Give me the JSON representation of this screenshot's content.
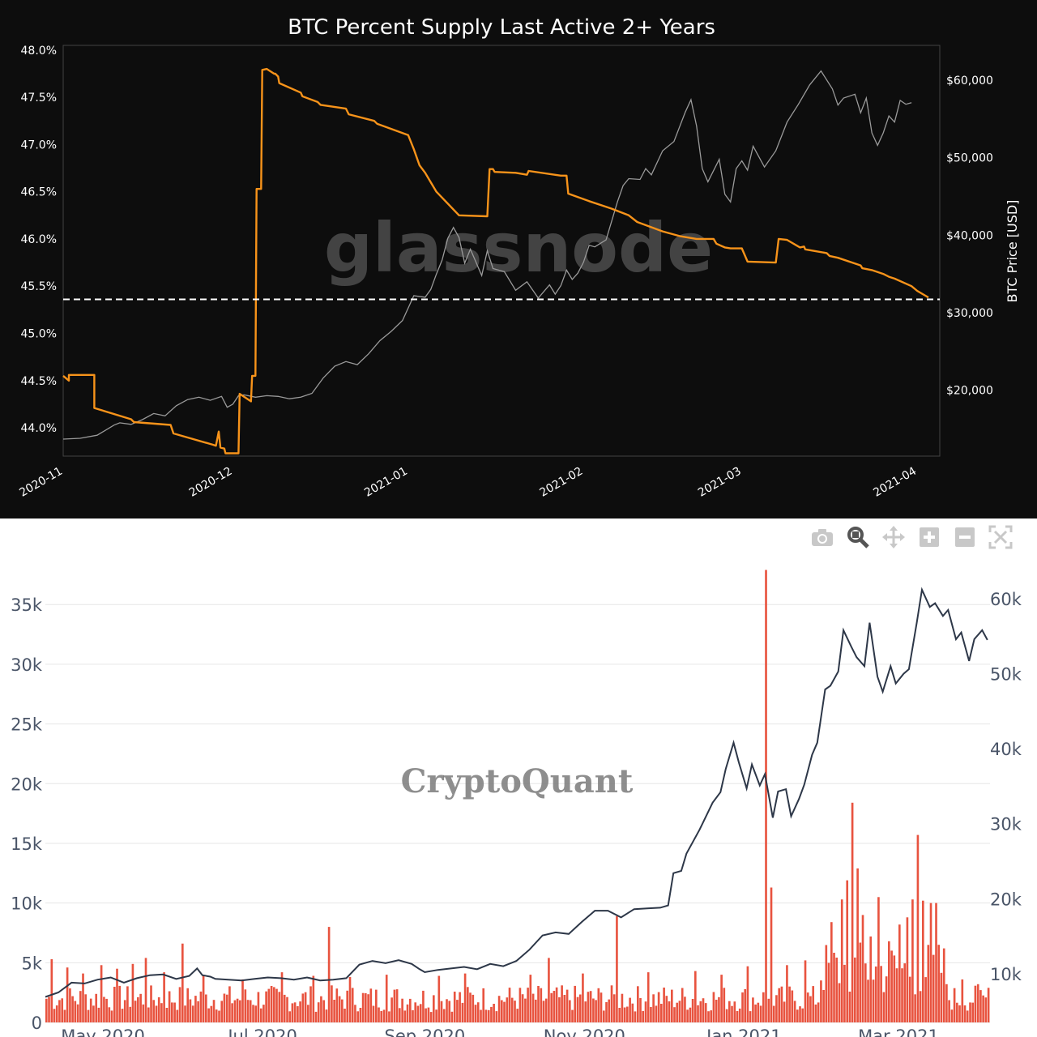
{
  "chart_data": [
    {
      "type": "line",
      "title": "BTC Percent Supply Last Active 2+ Years",
      "watermark": "glassnode",
      "y_left": {
        "range": [
          43.7,
          48.05
        ],
        "ticks": [
          "44.0%",
          "44.5%",
          "45.0%",
          "45.5%",
          "46.0%",
          "46.5%",
          "47.0%",
          "47.5%",
          "48.0%"
        ],
        "tick_values": [
          44.0,
          44.5,
          45.0,
          45.5,
          46.0,
          46.5,
          47.0,
          47.5,
          48.0
        ]
      },
      "y_right": {
        "label": "BTC Price [USD]",
        "range": [
          11500,
          64500
        ],
        "ticks": [
          "$20,000",
          "$30,000",
          "$40,000",
          "$50,000",
          "$60,000"
        ],
        "tick_values": [
          20000,
          30000,
          40000,
          50000,
          60000
        ]
      },
      "x_ticks": [
        "2020-11",
        "2020-12",
        "2021-01",
        "2021-02",
        "2021-03",
        "2021-04"
      ],
      "x_tick_days": [
        0,
        30,
        61,
        92,
        120,
        151
      ],
      "x_range_days": [
        0,
        155
      ],
      "reference_line": {
        "value": 45.36,
        "style": "dashed",
        "color": "#ffffff"
      },
      "series": [
        {
          "axis": "left",
          "color": "#f7931a",
          "x": [
            0,
            1,
            1,
            5.5,
            5.5,
            12,
            12.5,
            19,
            19.5,
            26.5,
            27,
            27.5,
            27.8,
            28.5,
            28.7,
            31,
            31.2,
            33.2,
            33.4,
            34,
            34.2,
            35,
            35.2,
            36,
            37.3,
            37.5,
            38,
            38.2,
            42,
            42.3,
            45,
            45.5,
            50,
            50.5,
            55,
            55.5,
            61,
            62,
            63,
            64,
            65,
            66,
            70,
            75,
            75.4,
            76,
            76.3,
            80,
            82,
            82.3,
            88,
            89,
            89.3,
            93,
            97,
            100,
            101.5,
            106,
            109,
            112,
            115,
            115.5,
            117,
            118,
            119,
            120,
            121,
            126,
            126.5,
            128,
            130,
            130.3,
            131,
            131.2,
            135,
            135.5,
            137,
            141,
            141.3,
            143,
            145,
            146,
            147,
            150,
            151,
            153
          ],
          "values": [
            44.55,
            44.5,
            44.56,
            44.56,
            44.21,
            44.09,
            44.06,
            44.03,
            43.94,
            43.82,
            43.81,
            43.96,
            43.79,
            43.78,
            43.73,
            43.73,
            44.36,
            44.28,
            44.55,
            44.55,
            46.53,
            46.53,
            47.79,
            47.8,
            47.75,
            47.75,
            47.72,
            47.65,
            47.55,
            47.51,
            47.45,
            47.42,
            47.38,
            47.32,
            47.25,
            47.22,
            47.1,
            46.95,
            46.78,
            46.7,
            46.6,
            46.5,
            46.25,
            46.24,
            46.74,
            46.74,
            46.71,
            46.7,
            46.68,
            46.72,
            46.67,
            46.67,
            46.48,
            46.4,
            46.32,
            46.25,
            46.18,
            46.08,
            46.03,
            46.0,
            46.0,
            45.95,
            45.91,
            45.9,
            45.9,
            45.9,
            45.76,
            45.75,
            46.0,
            45.99,
            45.92,
            45.91,
            45.92,
            45.89,
            45.85,
            45.82,
            45.8,
            45.72,
            45.69,
            45.67,
            45.63,
            45.6,
            45.58,
            45.5,
            45.45,
            45.38
          ]
        },
        {
          "axis": "right",
          "color": "#9a9a9a",
          "x": [
            0,
            3,
            6,
            9,
            10,
            12,
            14,
            16,
            18,
            20,
            22,
            24,
            26,
            28,
            29,
            30,
            31,
            32,
            34,
            36,
            38,
            40,
            42,
            44,
            46,
            48,
            50,
            52,
            54,
            56,
            58,
            60,
            62,
            64,
            65,
            66,
            67,
            68,
            69,
            70,
            71,
            72,
            73,
            74,
            75,
            76,
            78,
            80,
            82,
            84,
            86,
            87,
            88,
            89,
            90,
            91,
            92,
            93,
            94,
            96,
            98,
            99,
            100,
            102,
            103,
            104,
            106,
            108,
            110,
            111,
            112,
            113,
            114,
            116,
            117,
            118,
            119,
            120,
            121,
            122,
            124,
            126,
            128,
            130,
            132,
            134,
            136,
            137,
            138,
            140,
            141,
            142,
            143,
            144,
            145,
            146,
            147,
            148,
            149,
            150
          ],
          "values": [
            13700,
            13800,
            14200,
            15500,
            15800,
            15600,
            16200,
            17000,
            16700,
            18000,
            18800,
            19100,
            18700,
            19200,
            17800,
            18200,
            19300,
            19400,
            19100,
            19300,
            19200,
            18900,
            19100,
            19600,
            21600,
            23100,
            23700,
            23300,
            24700,
            26400,
            27600,
            29000,
            32200,
            32000,
            33000,
            35000,
            36800,
            39600,
            41000,
            39700,
            36400,
            38200,
            36500,
            34800,
            38000,
            35700,
            35300,
            32900,
            34000,
            31900,
            33600,
            32400,
            33500,
            35500,
            34300,
            35100,
            36500,
            38700,
            38500,
            39400,
            44300,
            46400,
            47300,
            47200,
            48600,
            47800,
            50900,
            52100,
            55900,
            57500,
            54100,
            48600,
            46900,
            49800,
            45300,
            44300,
            48600,
            49600,
            48400,
            51500,
            48800,
            50900,
            54600,
            56900,
            59400,
            61200,
            58900,
            56800,
            57700,
            58200,
            55800,
            57700,
            53200,
            51600,
            53200,
            55400,
            54600,
            57400,
            56900,
            57100
          ]
        }
      ]
    },
    {
      "type": "bar",
      "watermark": "CryptoQuant",
      "y_left": {
        "range": [
          0,
          38000
        ],
        "ticks": [
          "0",
          "5k",
          "10k",
          "15k",
          "20k",
          "25k",
          "30k",
          "35k"
        ],
        "tick_values": [
          0,
          5000,
          10000,
          15000,
          20000,
          25000,
          30000,
          35000
        ]
      },
      "y_right": {
        "range": [
          3500,
          64000
        ],
        "ticks": [
          "10k",
          "20k",
          "30k",
          "40k",
          "50k",
          "60k"
        ],
        "tick_values": [
          10000,
          20000,
          30000,
          40000,
          50000,
          60000
        ]
      },
      "x_ticks": [
        "May 2020",
        "Jul 2020",
        "Sep 2020",
        "Nov 2020",
        "Jan 2021",
        "Mar 2021"
      ],
      "x_tick_days": [
        22,
        83,
        145,
        206,
        267,
        326
      ],
      "x_range_days": [
        0,
        361
      ],
      "bars": {
        "color": "#e8533f",
        "base_level": 2500,
        "spikes": [
          {
            "day": 2,
            "value": 5300
          },
          {
            "day": 8,
            "value": 4600
          },
          {
            "day": 14,
            "value": 4100
          },
          {
            "day": 21,
            "value": 4800
          },
          {
            "day": 27,
            "value": 4500
          },
          {
            "day": 33,
            "value": 4900
          },
          {
            "day": 38,
            "value": 5400
          },
          {
            "day": 45,
            "value": 4200
          },
          {
            "day": 52,
            "value": 6600
          },
          {
            "day": 60,
            "value": 3900
          },
          {
            "day": 75,
            "value": 3600
          },
          {
            "day": 90,
            "value": 4200
          },
          {
            "day": 102,
            "value": 3900
          },
          {
            "day": 108,
            "value": 8000
          },
          {
            "day": 116,
            "value": 3800
          },
          {
            "day": 130,
            "value": 4000
          },
          {
            "day": 150,
            "value": 3900
          },
          {
            "day": 160,
            "value": 4100
          },
          {
            "day": 185,
            "value": 4000
          },
          {
            "day": 192,
            "value": 5400
          },
          {
            "day": 205,
            "value": 4100
          },
          {
            "day": 218,
            "value": 8900
          },
          {
            "day": 230,
            "value": 4200
          },
          {
            "day": 248,
            "value": 4300
          },
          {
            "day": 258,
            "value": 4000
          },
          {
            "day": 268,
            "value": 4700
          },
          {
            "day": 275,
            "value": 37900
          },
          {
            "day": 277,
            "value": 11300
          },
          {
            "day": 283,
            "value": 4800
          },
          {
            "day": 290,
            "value": 5200
          },
          {
            "day": 300,
            "value": 8400
          },
          {
            "day": 304,
            "value": 10300
          },
          {
            "day": 306,
            "value": 11900
          },
          {
            "day": 308,
            "value": 18400
          },
          {
            "day": 310,
            "value": 12900
          },
          {
            "day": 312,
            "value": 9000
          },
          {
            "day": 315,
            "value": 7200
          },
          {
            "day": 318,
            "value": 10500
          },
          {
            "day": 322,
            "value": 6800
          },
          {
            "day": 326,
            "value": 8200
          },
          {
            "day": 329,
            "value": 8800
          },
          {
            "day": 331,
            "value": 10300
          },
          {
            "day": 333,
            "value": 15700
          },
          {
            "day": 335,
            "value": 10200
          },
          {
            "day": 338,
            "value": 10000
          },
          {
            "day": 340,
            "value": 10000
          },
          {
            "day": 344,
            "value": 3200
          },
          {
            "day": 350,
            "value": 3600
          },
          {
            "day": 356,
            "value": 3200
          },
          {
            "day": 360,
            "value": 2900
          }
        ]
      },
      "series": [
        {
          "axis": "right",
          "color": "#2d3748",
          "x": [
            0,
            5,
            10,
            15,
            20,
            25,
            30,
            35,
            40,
            45,
            50,
            55,
            58,
            60,
            63,
            65,
            70,
            75,
            80,
            85,
            90,
            95,
            100,
            105,
            110,
            115,
            120,
            125,
            130,
            135,
            140,
            143,
            145,
            150,
            155,
            160,
            165,
            170,
            175,
            180,
            185,
            190,
            195,
            200,
            205,
            210,
            215,
            220,
            225,
            230,
            235,
            238,
            240,
            243,
            245,
            250,
            255,
            258,
            260,
            263,
            265,
            268,
            270,
            273,
            275,
            278,
            280,
            283,
            285,
            288,
            290,
            293,
            295,
            298,
            300,
            303,
            305,
            308,
            310,
            313,
            315,
            318,
            320,
            323,
            325,
            328,
            330,
            333,
            335,
            338,
            340,
            343,
            345,
            348,
            350,
            353,
            355,
            358,
            360
          ],
          "values": [
            6900,
            7500,
            8800,
            8700,
            9200,
            9500,
            8800,
            9400,
            9800,
            9900,
            9300,
            9700,
            10700,
            9800,
            9600,
            9300,
            9200,
            9100,
            9300,
            9500,
            9400,
            9200,
            9500,
            9100,
            9200,
            9400,
            11200,
            11700,
            11400,
            11800,
            11300,
            10600,
            10200,
            10500,
            10700,
            10900,
            10600,
            11300,
            11000,
            11700,
            13200,
            15100,
            15500,
            15300,
            16900,
            18400,
            18400,
            17500,
            18600,
            18700,
            18800,
            19100,
            23400,
            23700,
            26000,
            29200,
            32800,
            34200,
            37300,
            40800,
            38200,
            34700,
            37900,
            35100,
            36600,
            30800,
            34300,
            34600,
            31000,
            33300,
            35200,
            39200,
            40800,
            47900,
            48400,
            50300,
            55800,
            53600,
            52200,
            51000,
            56800,
            49600,
            47600,
            51000,
            48700,
            50000,
            50600,
            56800,
            61200,
            58900,
            59400,
            57700,
            58500,
            54600,
            55500,
            51700,
            54600,
            55800,
            54500
          ]
        }
      ]
    }
  ],
  "toolbar": {
    "icons": [
      "camera-icon",
      "zoom-icon",
      "pan-icon",
      "zoom-in-icon",
      "zoom-out-icon",
      "autoscale-icon"
    ]
  }
}
